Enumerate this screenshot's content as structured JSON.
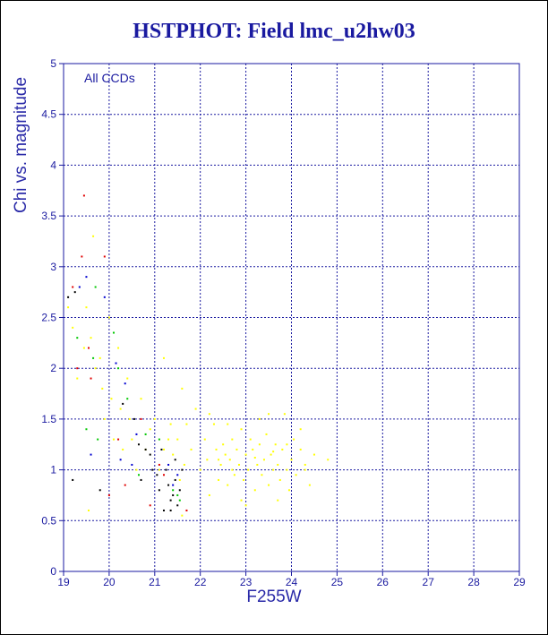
{
  "chart_data": {
    "type": "scatter",
    "title": "HSTPHOT: Field lmc_u2hw03",
    "xlabel": "F255W",
    "ylabel": "Chi vs. magnitude",
    "annotation": "All CCDs",
    "xlim": [
      19,
      29
    ],
    "ylim": [
      0,
      5
    ],
    "x_ticks": [
      19,
      20,
      21,
      22,
      23,
      24,
      25,
      26,
      27,
      28,
      29
    ],
    "y_ticks": [
      0,
      0.5,
      1,
      1.5,
      2,
      2.5,
      3,
      3.5,
      4,
      4.5,
      5
    ],
    "grid": true,
    "colors": {
      "axis": "#1a1aa0",
      "grid": "#1a1aa0",
      "title": "#1a1aa0",
      "yellow": "#ffff00",
      "red": "#e00000",
      "green": "#00c800",
      "blue": "#0000d0",
      "black": "#000000"
    },
    "series": [
      {
        "color": "yellow",
        "points": [
          [
            19.1,
            2.6
          ],
          [
            19.2,
            2.4
          ],
          [
            19.3,
            1.9
          ],
          [
            19.45,
            2.2
          ],
          [
            19.5,
            2.6
          ],
          [
            19.6,
            2.3
          ],
          [
            19.65,
            3.3
          ],
          [
            19.7,
            2.0
          ],
          [
            19.8,
            2.1
          ],
          [
            19.85,
            1.8
          ],
          [
            19.9,
            1.5
          ],
          [
            20.0,
            2.5
          ],
          [
            20.05,
            1.7
          ],
          [
            20.1,
            1.3
          ],
          [
            20.2,
            2.2
          ],
          [
            20.25,
            1.6
          ],
          [
            20.3,
            1.2
          ],
          [
            20.45,
            1.5
          ],
          [
            20.5,
            1.3
          ],
          [
            20.6,
            1.0
          ],
          [
            20.7,
            1.7
          ],
          [
            20.8,
            1.2
          ],
          [
            20.9,
            1.4
          ],
          [
            21.0,
            1.5
          ],
          [
            21.1,
            1.0
          ],
          [
            21.3,
            1.3
          ],
          [
            21.35,
            1.45
          ],
          [
            21.5,
            1.3
          ],
          [
            21.55,
            0.9
          ],
          [
            21.6,
            1.8
          ],
          [
            21.7,
            1.45
          ],
          [
            21.8,
            1.2
          ],
          [
            21.9,
            1.6
          ],
          [
            22.0,
            1.0
          ],
          [
            22.1,
            1.3
          ],
          [
            22.15,
            1.1
          ],
          [
            22.2,
            0.75
          ],
          [
            22.3,
            1.45
          ],
          [
            22.35,
            1.2
          ],
          [
            22.4,
            0.9
          ],
          [
            22.45,
            1.05
          ],
          [
            22.5,
            1.25
          ],
          [
            22.55,
            1.15
          ],
          [
            22.6,
            0.85
          ],
          [
            22.65,
            1.1
          ],
          [
            22.7,
            1.3
          ],
          [
            22.75,
            0.95
          ],
          [
            22.8,
            1.2
          ],
          [
            22.85,
            1.05
          ],
          [
            22.9,
            1.4
          ],
          [
            22.95,
            0.9
          ],
          [
            23.0,
            1.15
          ],
          [
            23.05,
            1.0
          ],
          [
            23.1,
            1.3
          ],
          [
            23.15,
            1.2
          ],
          [
            23.2,
            0.8
          ],
          [
            23.25,
            1.05
          ],
          [
            23.3,
            1.25
          ],
          [
            23.35,
            0.95
          ],
          [
            23.4,
            1.1
          ],
          [
            23.45,
            1.35
          ],
          [
            23.5,
            0.85
          ],
          [
            23.55,
            1.15
          ],
          [
            23.6,
            1.0
          ],
          [
            23.65,
            1.25
          ],
          [
            23.7,
            1.05
          ],
          [
            23.75,
            0.9
          ],
          [
            23.8,
            1.2
          ],
          [
            23.85,
            1.55
          ],
          [
            23.9,
            1.0
          ],
          [
            23.95,
            0.8
          ],
          [
            24.0,
            1.1
          ],
          [
            24.05,
            1.3
          ],
          [
            24.1,
            0.95
          ],
          [
            24.2,
            1.2
          ],
          [
            24.3,
            1.05
          ],
          [
            24.4,
            0.85
          ],
          [
            24.5,
            1.15
          ],
          [
            22.6,
            1.45
          ],
          [
            22.9,
            0.7
          ],
          [
            23.3,
            1.5
          ],
          [
            23.7,
            0.7
          ],
          [
            24.2,
            1.4
          ],
          [
            22.2,
            1.55
          ],
          [
            23.0,
            0.65
          ],
          [
            23.5,
            1.55
          ],
          [
            22.7,
            1.0
          ],
          [
            23.2,
            1.12
          ],
          [
            23.6,
            1.18
          ],
          [
            22.4,
            1.1
          ],
          [
            23.9,
            1.25
          ],
          [
            24.3,
            1.0
          ],
          [
            21.4,
            1.15
          ],
          [
            21.65,
            1.05
          ],
          [
            20.4,
            1.9
          ],
          [
            21.2,
            1.2
          ],
          [
            19.55,
            0.6
          ],
          [
            24.8,
            1.1
          ],
          [
            21.2,
            2.1
          ],
          [
            21.6,
            0.55
          ]
        ]
      },
      {
        "color": "red",
        "points": [
          [
            19.45,
            3.7
          ],
          [
            19.4,
            3.1
          ],
          [
            19.9,
            3.1
          ],
          [
            19.2,
            2.8
          ],
          [
            19.55,
            2.2
          ],
          [
            19.6,
            1.9
          ],
          [
            20.0,
            0.75
          ],
          [
            20.2,
            1.3
          ],
          [
            20.7,
            1.5
          ],
          [
            21.1,
            1.05
          ],
          [
            20.9,
            0.65
          ],
          [
            21.7,
            0.6
          ],
          [
            20.35,
            0.85
          ],
          [
            21.2,
            0.95
          ],
          [
            19.3,
            2.0
          ]
        ]
      },
      {
        "color": "green",
        "points": [
          [
            19.3,
            2.3
          ],
          [
            19.7,
            2.8
          ],
          [
            19.65,
            2.1
          ],
          [
            20.1,
            2.35
          ],
          [
            19.75,
            1.3
          ],
          [
            20.4,
            1.7
          ],
          [
            20.2,
            2.0
          ],
          [
            21.5,
            0.75
          ],
          [
            21.55,
            0.7
          ],
          [
            21.1,
            1.3
          ],
          [
            20.8,
            1.35
          ],
          [
            20.65,
            0.95
          ],
          [
            21.4,
            0.8
          ],
          [
            19.5,
            1.4
          ]
        ]
      },
      {
        "color": "blue",
        "points": [
          [
            19.35,
            2.8
          ],
          [
            19.5,
            2.9
          ],
          [
            19.9,
            2.7
          ],
          [
            20.15,
            2.05
          ],
          [
            20.35,
            1.85
          ],
          [
            20.6,
            1.35
          ],
          [
            20.5,
            1.05
          ],
          [
            20.25,
            1.1
          ],
          [
            21.3,
            1.05
          ],
          [
            21.4,
            0.85
          ],
          [
            19.6,
            1.15
          ],
          [
            21.5,
            0.95
          ]
        ]
      },
      {
        "color": "black",
        "points": [
          [
            19.1,
            2.7
          ],
          [
            19.25,
            2.75
          ],
          [
            19.2,
            0.9
          ],
          [
            20.3,
            1.65
          ],
          [
            20.55,
            1.5
          ],
          [
            20.8,
            1.2
          ],
          [
            20.95,
            1.0
          ],
          [
            21.05,
            0.95
          ],
          [
            21.1,
            0.8
          ],
          [
            21.15,
            1.2
          ],
          [
            21.25,
            1.0
          ],
          [
            21.3,
            0.85
          ],
          [
            21.35,
            0.7
          ],
          [
            21.45,
            1.1
          ],
          [
            21.45,
            0.9
          ],
          [
            21.5,
            0.65
          ],
          [
            21.55,
            0.8
          ],
          [
            21.6,
            1.0
          ],
          [
            20.9,
            1.15
          ],
          [
            20.7,
            0.9
          ],
          [
            20.65,
            1.25
          ],
          [
            21.2,
            0.6
          ],
          [
            19.8,
            0.8
          ],
          [
            21.35,
            0.6
          ],
          [
            21.4,
            0.75
          ]
        ]
      }
    ]
  }
}
